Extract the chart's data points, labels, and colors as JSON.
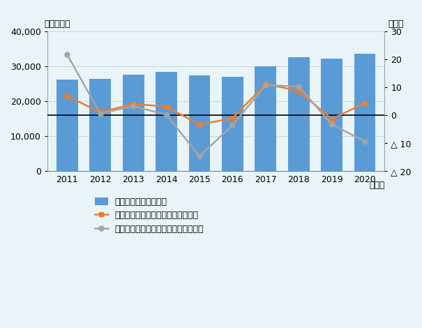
{
  "years": [
    2011,
    2012,
    2013,
    2014,
    2015,
    2016,
    2017,
    2018,
    2019,
    2020
  ],
  "bar_values": [
    26151,
    26420,
    27472,
    28307,
    27340,
    27029,
    30024,
    32598,
    32136,
    33530
  ],
  "digital_growth": [
    6.8,
    1.0,
    4.0,
    3.0,
    -3.4,
    -1.1,
    11.1,
    8.6,
    -1.4,
    4.3
  ],
  "nondigital_growth": [
    21.6,
    0.6,
    3.2,
    0.1,
    -14.7,
    -3.6,
    10.7,
    10.2,
    -3.3,
    -9.4
  ],
  "bar_color": "#5B9BD5",
  "digital_line_color": "#ED7D31",
  "nondigital_line_color": "#A5A5A5",
  "zero_line_color": "#000000",
  "background_color": "#E8F4F8",
  "title_left": "（億ドル）",
  "title_right": "（％）",
  "xlabel": "（年）",
  "ylim_left": [
    0,
    40000
  ],
  "ylim_right": [
    -20,
    30
  ],
  "yticks_left": [
    0,
    10000,
    20000,
    30000,
    40000
  ],
  "yticks_right": [
    -20,
    -10,
    0,
    10,
    20,
    30
  ],
  "ytick_labels_right": [
    "△ 20",
    "△ 10",
    "0",
    "10",
    "20",
    "30"
  ],
  "legend_label_bar": "デジタル関連財輸出額",
  "legend_label_digital": "デジタル関連財輸出伸び率（右軸）",
  "legend_label_nondigital": "非デジタル関連財輸出伸び率（右軸）",
  "bar_width": 0.65,
  "figsize": [
    6.05,
    4.7
  ],
  "dpi": 100
}
